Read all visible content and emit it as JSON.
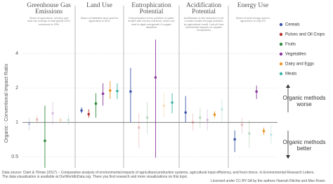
{
  "chart_data": {
    "type": "errorpoint",
    "categories": [
      "Greenhouse Gas Emissions",
      "Land Use",
      "Eutrophication Potential",
      "Acidification Potential",
      "Energy Use"
    ],
    "panel_notes": [
      "Share of agriculture, forestry and land use change in total global GHG emissions is 25%",
      "Share of habitable land used for agriculture is 50%",
      "Eutrophication is the pollution of water bodies with excess nutrients, which can lead to algal overgrowth & oxygen depletion",
      "Acidification is the reduction in pH of water bodies through pollution by agricultural runoff. Low pH has detrimental impacts on aquatic ecosystems",
      "Share of total energy used in agriculture is only 2%"
    ],
    "y_label": "Organic : Conventional Impact Ratio",
    "log_scale": true,
    "ylim": [
      0.4,
      5.4
    ],
    "yticks": [
      0.5,
      1,
      2,
      4
    ],
    "reference_line": 1,
    "grid": true,
    "series": [
      {
        "name": "Cereals",
        "color": "#3b57a8",
        "values": [
          0.97,
          1.27,
          1.86,
          1.22,
          0.71
        ],
        "low": [
          0.85,
          1.2,
          1.0,
          1.0,
          0.55
        ],
        "high": [
          1.1,
          1.35,
          3.0,
          1.7,
          0.85
        ],
        "significant": [
          false,
          true,
          true,
          true,
          true
        ]
      },
      {
        "name": "Pulses and Oil Crops",
        "color": "#b7332d",
        "values": [
          1.06,
          1.18,
          0.9,
          1.0,
          0.95
        ],
        "low": [
          0.98,
          1.1,
          0.6,
          0.85,
          0.8
        ],
        "high": [
          1.15,
          1.3,
          1.2,
          1.2,
          1.1
        ],
        "significant": [
          false,
          true,
          false,
          false,
          false
        ]
      },
      {
        "name": "Fruits",
        "color": "#2f8a3c",
        "values": [
          0.69,
          1.46,
          1.1,
          1.1,
          0.8
        ],
        "low": [
          0.38,
          1.1,
          0.8,
          0.9,
          0.6
        ],
        "high": [
          1.4,
          1.8,
          1.5,
          1.35,
          1.05
        ],
        "significant": [
          true,
          true,
          false,
          false,
          false
        ]
      },
      {
        "name": "Vegetables",
        "color": "#8b3a9c",
        "values": [
          1.2,
          1.78,
          2.47,
          1.05,
          1.86
        ],
        "low": [
          0.95,
          1.4,
          0.49,
          0.85,
          1.6
        ],
        "high": [
          1.5,
          2.2,
          5.3,
          1.3,
          2.1
        ],
        "significant": [
          false,
          true,
          true,
          false,
          true
        ]
      },
      {
        "name": "Dairy and Eggs",
        "color": "#e8962a",
        "values": [
          1.05,
          1.9,
          1.4,
          1.17,
          0.84
        ],
        "low": [
          1.0,
          1.6,
          1.1,
          1.1,
          0.78
        ],
        "high": [
          1.1,
          2.3,
          1.8,
          1.25,
          0.9
        ],
        "significant": [
          false,
          true,
          false,
          true,
          true
        ]
      },
      {
        "name": "Meats",
        "color": "#3fb4a5",
        "values": [
          1.05,
          1.88,
          1.49,
          1.3,
          0.78
        ],
        "low": [
          0.95,
          1.6,
          1.2,
          1.0,
          0.65
        ],
        "high": [
          1.15,
          2.2,
          1.8,
          1.6,
          0.95
        ],
        "significant": [
          false,
          true,
          true,
          false,
          false
        ]
      }
    ],
    "annotations": [
      "Organic methods worse",
      "Organic methods better"
    ],
    "footer": [
      "Data source: Clark & Tilman (2017) – Comparative analysis of environmental impacts of agricultural production systems, agricultural input efficiency, and food choice. In Environmental Research Letters.",
      "The data visualization is available at OurWorldInData.org. There you find research and more visualizations on this topic.",
      "Licensed under CC-BY-SA by the authors Hannah Ritchie and Max Roser."
    ]
  }
}
